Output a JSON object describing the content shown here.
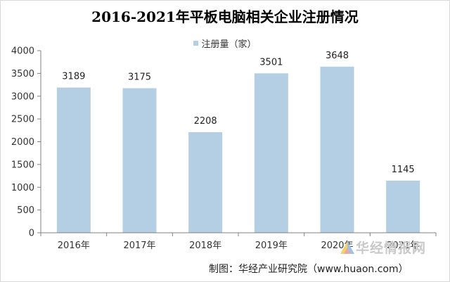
{
  "chart_data": {
    "type": "bar",
    "title": "2016-2021年平板电脑相关企业注册情况",
    "categories": [
      "2016年",
      "2017年",
      "2018年",
      "2019年",
      "2020年",
      "2021年"
    ],
    "series": [
      {
        "name": "注册量（家）",
        "values": [
          3189,
          3175,
          2208,
          3501,
          3648,
          1145
        ]
      }
    ],
    "data_labels": [
      "3189",
      "3175",
      "2208",
      "3501",
      "3648",
      "1145"
    ],
    "ylim": [
      0,
      4000
    ],
    "yticks": [
      0,
      500,
      1000,
      1500,
      2000,
      2500,
      3000,
      3500,
      4000
    ],
    "xlabel": "",
    "ylabel": "",
    "grid": false,
    "legend": "top-center",
    "bar_color": "#b4cee3"
  },
  "watermark": {
    "text": "华经情报网",
    "logo": "huajing-logo-icon"
  },
  "credit": "制图：华经产业研究院（www.huaon.com）"
}
